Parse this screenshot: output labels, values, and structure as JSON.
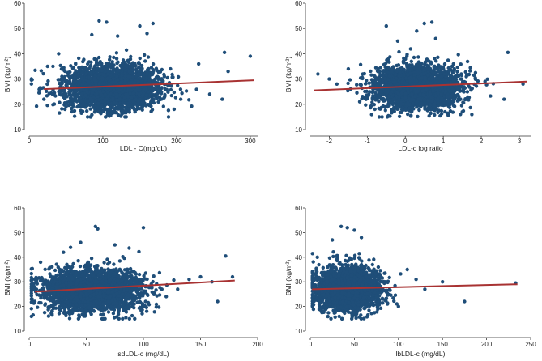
{
  "colors": {
    "points": "#1f4e79",
    "fit_line": "#a83232",
    "axis": "#333333",
    "background": "#ffffff"
  },
  "chart_data": [
    {
      "type": "scatter",
      "title": "",
      "xlabel": "LDL - C(mg/dL)",
      "ylabel": "BMI (kg/m²)",
      "xlim": [
        0,
        310
      ],
      "ylim": [
        10,
        60
      ],
      "xticks": [
        0,
        100,
        200,
        300
      ],
      "yticks": [
        10,
        20,
        30,
        40,
        50,
        60
      ],
      "grid": false,
      "legend": "none",
      "cloud": {
        "x_center": 112,
        "x_spread": 32,
        "y_center": 26.5,
        "y_spread": 4.2,
        "n": 2600
      },
      "outliers": [
        [
          95,
          53
        ],
        [
          105,
          52.5
        ],
        [
          150,
          51
        ],
        [
          168,
          52
        ],
        [
          160,
          48
        ],
        [
          85,
          47.5
        ],
        [
          120,
          47
        ],
        [
          265,
          40.5
        ],
        [
          300,
          39
        ],
        [
          40,
          40
        ],
        [
          270,
          33
        ],
        [
          245,
          24
        ],
        [
          262,
          22
        ],
        [
          50,
          19
        ],
        [
          70,
          17.5
        ],
        [
          20,
          22
        ],
        [
          25,
          35
        ],
        [
          230,
          36
        ]
      ],
      "fit_line": {
        "x": [
          20,
          305
        ],
        "y": [
          26.0,
          29.5
        ]
      }
    },
    {
      "type": "scatter",
      "title": "",
      "xlabel": "LDL-c log ratio",
      "ylabel": "BMI (kg/m²)",
      "xlim": [
        -2.5,
        3.3
      ],
      "ylim": [
        10,
        60
      ],
      "xticks": [
        -2,
        -1,
        0,
        1,
        2,
        3
      ],
      "yticks": [
        10,
        20,
        30,
        40,
        50,
        60
      ],
      "grid": false,
      "legend": "none",
      "cloud": {
        "x_center": 0.3,
        "x_spread": 0.55,
        "y_center": 26.5,
        "y_spread": 4.2,
        "n": 2600
      },
      "outliers": [
        [
          0.5,
          52
        ],
        [
          0.7,
          52.5
        ],
        [
          -0.5,
          51
        ],
        [
          0.3,
          49
        ],
        [
          0.8,
          46
        ],
        [
          -0.2,
          45
        ],
        [
          2.7,
          40.5
        ],
        [
          -2.3,
          32
        ],
        [
          -1.8,
          28
        ],
        [
          -2.0,
          30
        ],
        [
          -1.5,
          34
        ],
        [
          3.1,
          28
        ],
        [
          2.1,
          29
        ],
        [
          2.6,
          22
        ],
        [
          1.5,
          17
        ],
        [
          -0.8,
          18
        ],
        [
          -1.2,
          21
        ]
      ],
      "fit_line": {
        "x": [
          -2.4,
          3.2
        ],
        "y": [
          25.5,
          29.0
        ]
      }
    },
    {
      "type": "scatter",
      "title": "",
      "xlabel": "sdLDL-c (mg/dL)",
      "ylabel": "BMI (kg/m²)",
      "xlim": [
        0,
        200
      ],
      "ylim": [
        10,
        60
      ],
      "xticks": [
        0,
        50,
        100,
        150,
        200
      ],
      "yticks": [
        10,
        20,
        30,
        40,
        50,
        60
      ],
      "grid": false,
      "legend": "none",
      "cloud": {
        "x_center": 55,
        "x_spread": 22,
        "y_center": 26.5,
        "y_spread": 4.2,
        "n": 2600
      },
      "outliers": [
        [
          58,
          52.5
        ],
        [
          60,
          51.5
        ],
        [
          100,
          52
        ],
        [
          45,
          46
        ],
        [
          75,
          45
        ],
        [
          30,
          42
        ],
        [
          172,
          40.5
        ],
        [
          178,
          32
        ],
        [
          160,
          30
        ],
        [
          150,
          32
        ],
        [
          140,
          31
        ],
        [
          130,
          27
        ],
        [
          120,
          24
        ],
        [
          165,
          22
        ],
        [
          10,
          38
        ],
        [
          5,
          22
        ],
        [
          20,
          17
        ]
      ],
      "fit_line": {
        "x": [
          5,
          180
        ],
        "y": [
          26.0,
          30.5
        ]
      }
    },
    {
      "type": "scatter",
      "title": "",
      "xlabel": "lbLDL-c (mg/dL)",
      "ylabel": "BMI (kg/m²)",
      "xlim": [
        0,
        250
      ],
      "ylim": [
        10,
        60
      ],
      "xticks": [
        0,
        50,
        100,
        150,
        200,
        250
      ],
      "yticks": [
        10,
        20,
        30,
        40,
        50,
        60
      ],
      "grid": false,
      "legend": "none",
      "cloud": {
        "x_center": 42,
        "x_spread": 18,
        "y_center": 27,
        "y_spread": 4.2,
        "n": 2600
      },
      "outliers": [
        [
          35,
          52.5
        ],
        [
          42,
          52
        ],
        [
          50,
          51
        ],
        [
          58,
          48
        ],
        [
          25,
          47
        ],
        [
          5,
          28
        ],
        [
          8,
          40
        ],
        [
          110,
          35
        ],
        [
          120,
          31
        ],
        [
          130,
          27
        ],
        [
          150,
          30
        ],
        [
          175,
          22
        ],
        [
          233,
          29.5
        ],
        [
          100,
          20
        ],
        [
          15,
          18
        ]
      ],
      "fit_line": {
        "x": [
          2,
          235
        ],
        "y": [
          27.0,
          29.0
        ]
      }
    }
  ]
}
